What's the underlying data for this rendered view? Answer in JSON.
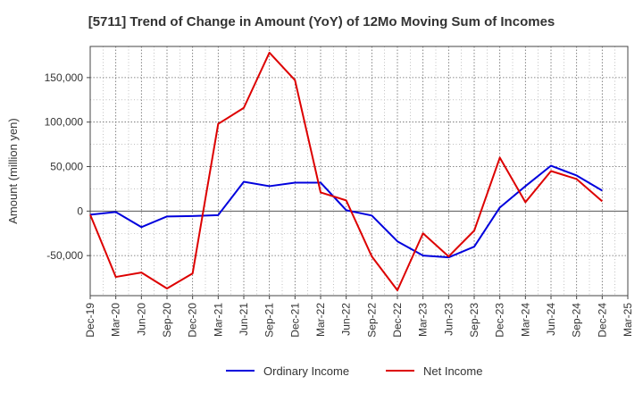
{
  "chart_data": {
    "type": "line",
    "title": "[5711]  Trend of Change in Amount (YoY) of 12Mo Moving Sum of Incomes",
    "xlabel": "",
    "ylabel": "Amount (million yen)",
    "categories": [
      "Dec-19",
      "Mar-20",
      "Jun-20",
      "Sep-20",
      "Dec-20",
      "Mar-21",
      "Jun-21",
      "Sep-21",
      "Dec-21",
      "Mar-22",
      "Jun-22",
      "Sep-22",
      "Dec-22",
      "Mar-23",
      "Jun-23",
      "Sep-23",
      "Dec-23",
      "Mar-24",
      "Jun-24",
      "Sep-24",
      "Dec-24",
      "Mar-25"
    ],
    "ylim": [
      -95000,
      185000
    ],
    "yticks": [
      -50000,
      0,
      50000,
      100000,
      150000
    ],
    "ytick_labels": [
      "-50,000",
      "0",
      "50,000",
      "100,000",
      "150,000"
    ],
    "grid": true,
    "legend_position": "bottom",
    "series": [
      {
        "name": "Ordinary Income",
        "color": "#0000dd",
        "values": [
          -4000,
          -1000,
          -18000,
          -6000,
          -5500,
          -4500,
          33000,
          28000,
          32000,
          32000,
          1000,
          -5000,
          -34000,
          -50000,
          -52000,
          -40000,
          4000,
          28000,
          51000,
          40000,
          23000,
          null
        ]
      },
      {
        "name": "Net Income",
        "color": "#dd0000",
        "values": [
          -4000,
          -74000,
          -69000,
          -87000,
          -70000,
          98000,
          116000,
          178000,
          147000,
          21000,
          12000,
          -51000,
          -89000,
          -25000,
          -51000,
          -22000,
          60000,
          10000,
          45000,
          36000,
          11000,
          null
        ]
      }
    ]
  }
}
